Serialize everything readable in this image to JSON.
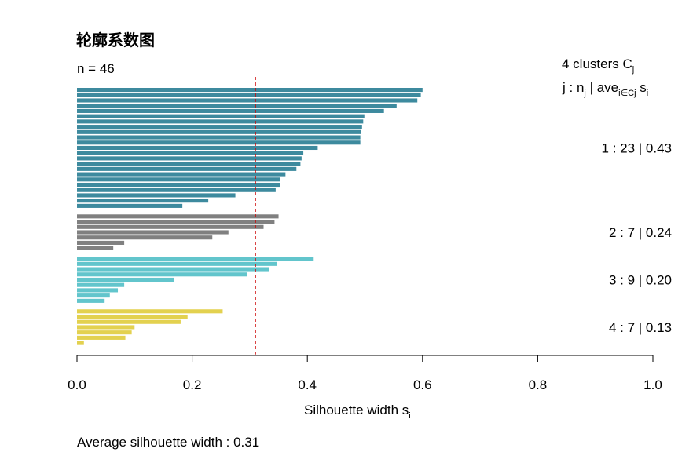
{
  "chart_data": {
    "type": "bar",
    "orientation": "horizontal",
    "title": "轮廓系数图",
    "n_label": "n = 46",
    "header": {
      "line1_prefix": "4  clusters  C",
      "line1_sub": "j",
      "line2_a": "j :  n",
      "line2_b": "j",
      "line2_c": " | ave",
      "line2_d": "i∈Cj",
      "line2_e": "  s",
      "line2_f": "i"
    },
    "xlabel_main": "Silhouette width s",
    "xlabel_sub": "i",
    "xlim": [
      0,
      1
    ],
    "x_ticks": [
      0.0,
      0.2,
      0.4,
      0.6,
      0.8,
      1.0
    ],
    "x_tick_labels": [
      "0.0",
      "0.2",
      "0.4",
      "0.6",
      "0.8",
      "1.0"
    ],
    "average_silhouette": 0.31,
    "average_line_color": "#cc0000",
    "footer": "Average silhouette width :  0.31",
    "clusters": [
      {
        "name": "1",
        "color": "#3d8a9e",
        "label": "1 :   23  |  0.43",
        "values": [
          0.6,
          0.597,
          0.591,
          0.555,
          0.533,
          0.499,
          0.497,
          0.495,
          0.493,
          0.492,
          0.492,
          0.418,
          0.393,
          0.39,
          0.388,
          0.381,
          0.362,
          0.352,
          0.352,
          0.345,
          0.275,
          0.228,
          0.183
        ]
      },
      {
        "name": "2",
        "color": "#808080",
        "label": "2 :   7  |  0.24",
        "values": [
          0.35,
          0.343,
          0.324,
          0.263,
          0.235,
          0.082,
          0.063
        ]
      },
      {
        "name": "3",
        "color": "#62c5cc",
        "label": "3 :   9  |  0.20",
        "values": [
          0.411,
          0.347,
          0.333,
          0.295,
          0.168,
          0.082,
          0.071,
          0.057,
          0.048
        ]
      },
      {
        "name": "4",
        "color": "#e3d14f",
        "label": "4 :   7  |  0.13",
        "values": [
          0.253,
          0.192,
          0.18,
          0.1,
          0.095,
          0.084,
          0.012
        ]
      }
    ]
  }
}
